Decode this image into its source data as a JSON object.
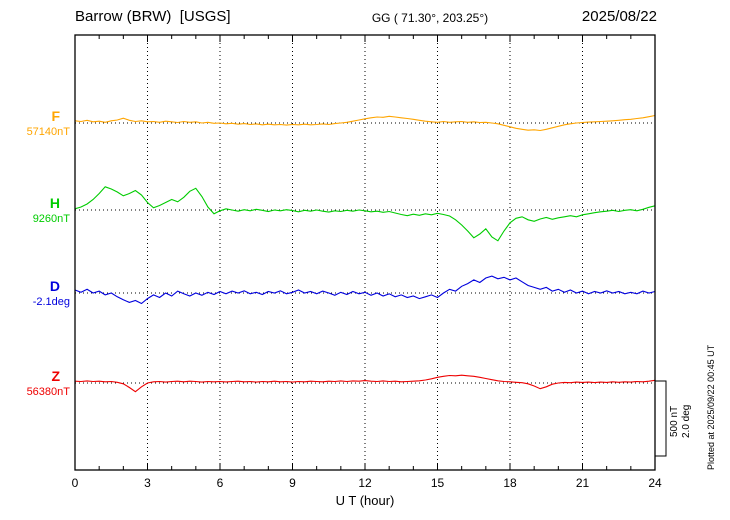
{
  "header": {
    "station_title": "Barrow (BRW)  [USGS]",
    "coords": "GG ( 71.30°, 203.25°)",
    "date": "2025/08/22"
  },
  "side_notes": {
    "scale_label_nt": "500 nT",
    "scale_label_deg": "2.0 deg",
    "plotted_at": "Plotted at 2025/09/22 00:45 UT"
  },
  "chart_data": {
    "type": "line",
    "title": "Barrow (BRW)  [USGS]",
    "subtitle": "GG ( 71.30°, 203.25°)",
    "date": "2025/08/22",
    "xlabel": "U T (hour)",
    "xlim": [
      0,
      24
    ],
    "xticks": [
      0,
      3,
      6,
      9,
      12,
      15,
      18,
      21,
      24
    ],
    "x_hours_step": 0.25,
    "scale": {
      "nT_per_division": 500,
      "deg_per_division": 2.0
    },
    "layout": {
      "grid": "dotted vertical lines every 3 hours",
      "baseline_style": "dotted horizontal line at each series baseline",
      "legend_position": "left margin"
    },
    "series": [
      {
        "name": "F",
        "unit": "nT",
        "baseline": 57140,
        "baseline_label": "57140nT",
        "color": "#FFA500",
        "values": [
          57155,
          57150,
          57158,
          57148,
          57152,
          57145,
          57155,
          57160,
          57172,
          57158,
          57150,
          57155,
          57148,
          57150,
          57145,
          57152,
          57148,
          57143,
          57150,
          57145,
          57148,
          57140,
          57145,
          57138,
          57140,
          57135,
          57138,
          57132,
          57136,
          57130,
          57134,
          57128,
          57132,
          57128,
          57130,
          57126,
          57130,
          57128,
          57132,
          57128,
          57130,
          57134,
          57130,
          57136,
          57140,
          57145,
          57152,
          57160,
          57168,
          57175,
          57180,
          57178,
          57185,
          57180,
          57175,
          57170,
          57165,
          57158,
          57152,
          57148,
          57145,
          57150,
          57145,
          57148,
          57150,
          57145,
          57148,
          57143,
          57145,
          57140,
          57135,
          57125,
          57115,
          57105,
          57098,
          57092,
          57095,
          57090,
          57098,
          57108,
          57118,
          57128,
          57135,
          57140,
          57143,
          57146,
          57148,
          57150,
          57152,
          57155,
          57158,
          57162,
          57165,
          57170,
          57175,
          57182,
          57190
        ]
      },
      {
        "name": "H",
        "unit": "nT",
        "baseline": 9260,
        "baseline_label": "9260nT",
        "color": "#00CC00",
        "values": [
          9268,
          9280,
          9300,
          9330,
          9370,
          9415,
          9400,
          9380,
          9355,
          9370,
          9390,
          9360,
          9310,
          9275,
          9290,
          9310,
          9330,
          9315,
          9345,
          9385,
          9405,
          9350,
          9280,
          9235,
          9255,
          9268,
          9260,
          9252,
          9262,
          9255,
          9265,
          9258,
          9250,
          9260,
          9255,
          9262,
          9256,
          9248,
          9258,
          9252,
          9260,
          9252,
          9246,
          9255,
          9250,
          9258,
          9252,
          9260,
          9255,
          9248,
          9252,
          9245,
          9250,
          9240,
          9230,
          9222,
          9232,
          9225,
          9235,
          9228,
          9238,
          9230,
          9220,
          9195,
          9160,
          9120,
          9075,
          9100,
          9135,
          9080,
          9055,
          9120,
          9175,
          9205,
          9215,
          9195,
          9185,
          9200,
          9210,
          9198,
          9208,
          9215,
          9222,
          9215,
          9228,
          9235,
          9242,
          9248,
          9252,
          9258,
          9250,
          9258,
          9262,
          9255,
          9265,
          9278,
          9288
        ]
      },
      {
        "name": "D",
        "unit": "deg",
        "baseline": -2.1,
        "baseline_label": "-2.1deg",
        "color": "#0000DD",
        "values": [
          -2.02,
          -2.08,
          -2.0,
          -2.1,
          -2.05,
          -2.15,
          -2.1,
          -2.2,
          -2.28,
          -2.35,
          -2.3,
          -2.38,
          -2.25,
          -2.15,
          -2.22,
          -2.1,
          -2.18,
          -2.05,
          -2.12,
          -2.18,
          -2.1,
          -2.16,
          -2.08,
          -2.14,
          -2.06,
          -2.12,
          -2.05,
          -2.1,
          -2.04,
          -2.12,
          -2.08,
          -2.14,
          -2.06,
          -2.1,
          -2.04,
          -2.12,
          -2.08,
          -2.02,
          -2.1,
          -2.06,
          -2.12,
          -2.05,
          -2.1,
          -2.16,
          -2.08,
          -2.14,
          -2.06,
          -2.12,
          -2.08,
          -2.16,
          -2.1,
          -2.18,
          -2.12,
          -2.2,
          -2.15,
          -2.22,
          -2.18,
          -2.25,
          -2.2,
          -2.15,
          -2.22,
          -2.1,
          -2.0,
          -2.05,
          -1.92,
          -1.85,
          -1.75,
          -1.82,
          -1.7,
          -1.65,
          -1.72,
          -1.68,
          -1.75,
          -1.7,
          -1.8,
          -1.9,
          -1.95,
          -2.0,
          -1.95,
          -2.05,
          -2.0,
          -2.08,
          -2.02,
          -2.1,
          -2.05,
          -2.12,
          -2.06,
          -2.1,
          -2.04,
          -2.1,
          -2.06,
          -2.12,
          -2.08,
          -2.12,
          -2.05,
          -2.1,
          -2.06
        ]
      },
      {
        "name": "Z",
        "unit": "nT",
        "baseline": 56380,
        "baseline_label": "56380nT",
        "color": "#EE0000",
        "values": [
          56392,
          56390,
          56394,
          56390,
          56392,
          56388,
          56390,
          56385,
          56375,
          56350,
          56322,
          56355,
          56380,
          56388,
          56390,
          56386,
          56390,
          56392,
          56388,
          56392,
          56390,
          56386,
          56390,
          56388,
          56390,
          56387,
          56390,
          56392,
          56388,
          56390,
          56386,
          56390,
          56388,
          56392,
          56388,
          56390,
          56386,
          56390,
          56388,
          56392,
          56390,
          56388,
          56392,
          56390,
          56394,
          56390,
          56394,
          56392,
          56396,
          56392,
          56390,
          56394,
          56390,
          56392,
          56388,
          56390,
          56392,
          56395,
          56400,
          56408,
          56418,
          56425,
          56430,
          56428,
          56432,
          56428,
          56425,
          56418,
          56410,
          56402,
          56395,
          56390,
          56388,
          56385,
          56382,
          56375,
          56360,
          56342,
          56355,
          56372,
          56380,
          56384,
          56382,
          56386,
          56384,
          56386,
          56383,
          56386,
          56384,
          56388,
          56385,
          56388,
          56386,
          56390,
          56388,
          56392,
          56398
        ]
      }
    ]
  }
}
